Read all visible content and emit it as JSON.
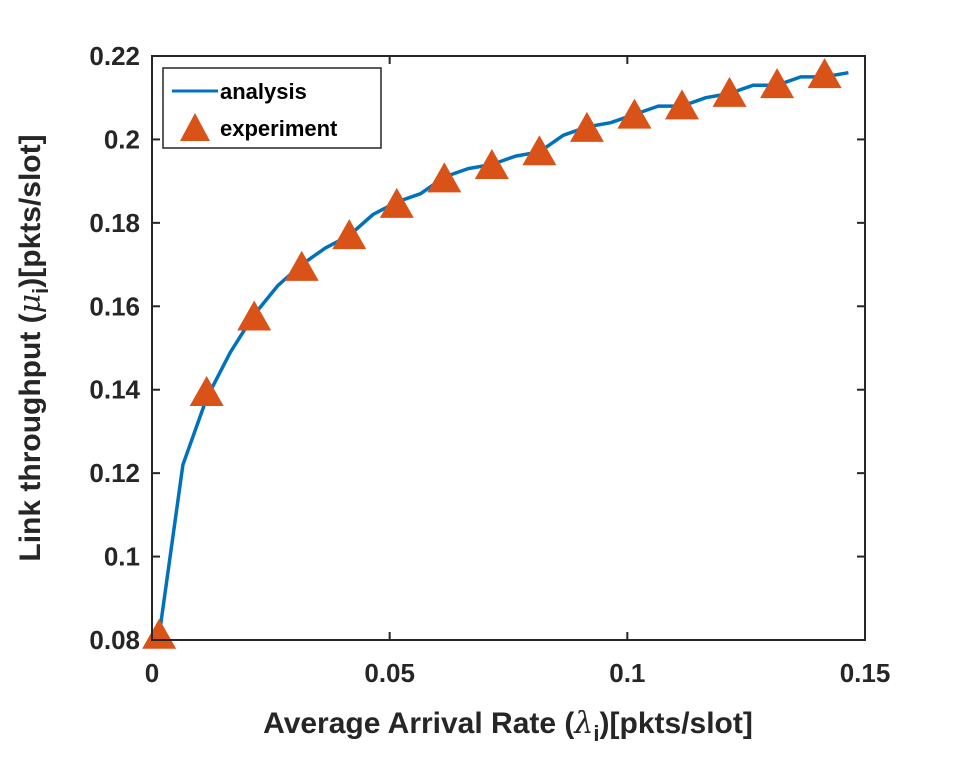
{
  "chart_data": {
    "type": "line",
    "title": "",
    "xlabel": "Average Arrival Rate (λ_i)[pkts/slot]",
    "xlabel_parts": {
      "prefix": "Average Arrival Rate (",
      "symbol": "λ",
      "sub": "i",
      "suffix": ")[pkts/slot]"
    },
    "ylabel": "Link throughput (μ_i)[pkts/slot]",
    "ylabel_parts": {
      "prefix": "Link throughput (",
      "symbol": "μ",
      "sub": "i",
      "suffix": ")[pkts/slot]"
    },
    "xlim": [
      0,
      0.15
    ],
    "ylim": [
      0.08,
      0.22
    ],
    "xticks": [
      0,
      0.05,
      0.1,
      0.15
    ],
    "xtick_labels": [
      "0",
      "0.05",
      "0.1",
      "0.15"
    ],
    "yticks": [
      0.08,
      0.1,
      0.12,
      0.14,
      0.16,
      0.18,
      0.2,
      0.22
    ],
    "ytick_labels": [
      "0.08",
      "0.1",
      "0.12",
      "0.14",
      "0.16",
      "0.18",
      "0.2",
      "0.22"
    ],
    "legend_position": "top-left",
    "series": [
      {
        "name": "analysis",
        "style": "line",
        "color": "#0072BD",
        "x": [
          0.0015,
          0.0065,
          0.0115,
          0.0165,
          0.0215,
          0.0265,
          0.0315,
          0.0365,
          0.0415,
          0.0465,
          0.0515,
          0.0565,
          0.0615,
          0.0665,
          0.0715,
          0.0765,
          0.0815,
          0.0865,
          0.0915,
          0.0965,
          0.1015,
          0.1065,
          0.1115,
          0.1165,
          0.1215,
          0.1265,
          0.1315,
          0.1365,
          0.1415,
          0.1465
        ],
        "y": [
          0.081,
          0.122,
          0.138,
          0.149,
          0.158,
          0.165,
          0.17,
          0.174,
          0.177,
          0.182,
          0.185,
          0.187,
          0.191,
          0.193,
          0.194,
          0.196,
          0.197,
          0.201,
          0.203,
          0.204,
          0.206,
          0.208,
          0.208,
          0.21,
          0.211,
          0.213,
          0.213,
          0.215,
          0.215,
          0.216
        ]
      },
      {
        "name": "experiment",
        "style": "marker-triangle",
        "color": "#D95319",
        "x": [
          0.0015,
          0.0115,
          0.0215,
          0.0315,
          0.0415,
          0.0515,
          0.0615,
          0.0715,
          0.0815,
          0.0915,
          0.1015,
          0.1115,
          0.1215,
          0.1315,
          0.1415
        ],
        "y": [
          0.0815,
          0.1397,
          0.1578,
          0.1697,
          0.1773,
          0.1848,
          0.1909,
          0.1941,
          0.1974,
          0.203,
          0.2062,
          0.2084,
          0.2114,
          0.2135,
          0.2159
        ]
      }
    ]
  }
}
